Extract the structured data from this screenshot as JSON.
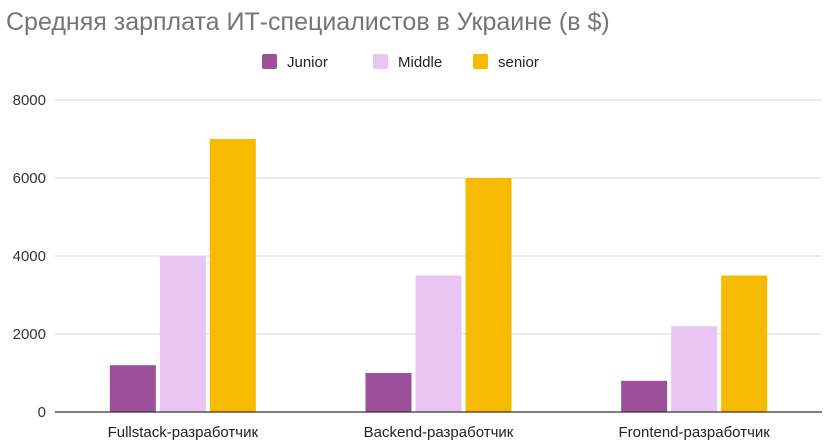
{
  "chart_data": {
    "type": "bar",
    "title": "Средняя зарплата ИТ-специалистов в Украине (в $)",
    "xlabel": "",
    "ylabel": "",
    "ylim": [
      0,
      8000
    ],
    "yticks": [
      "0",
      "2000",
      "4000",
      "6000",
      "8000"
    ],
    "grid": true,
    "legend_position": "top",
    "categories": [
      "Fullstack-разработчик",
      "Backend-разработчик",
      "Frontend-разработчик"
    ],
    "series": [
      {
        "name": "Junior",
        "color": "#9c4f9a",
        "values": [
          1200,
          1000,
          800
        ]
      },
      {
        "name": "Middle",
        "color": "#e9c5f4",
        "values": [
          4000,
          3500,
          2200
        ]
      },
      {
        "name": "senior",
        "color": "#f6bb00",
        "values": [
          7000,
          6000,
          3500
        ]
      }
    ]
  }
}
